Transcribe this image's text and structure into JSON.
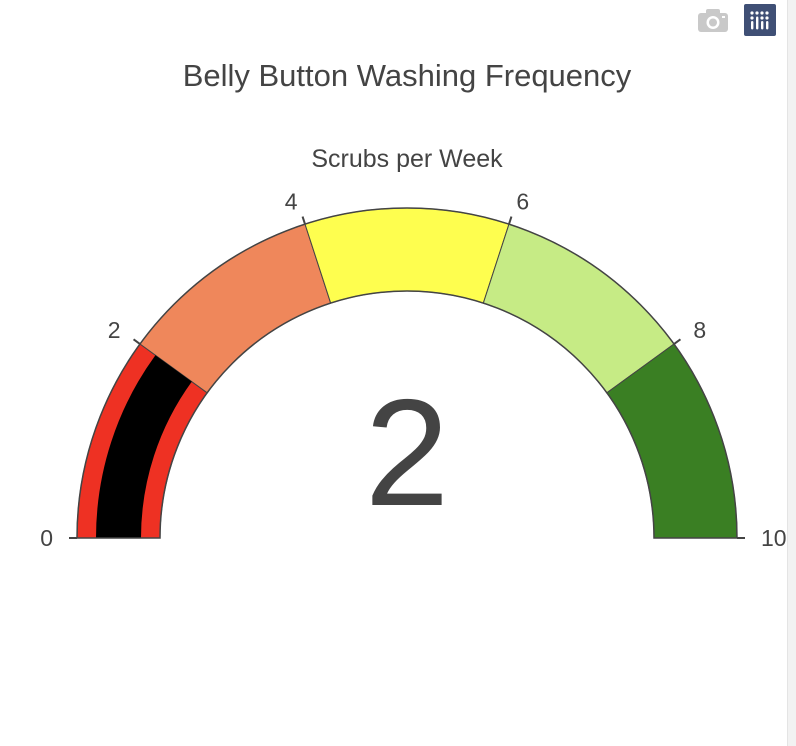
{
  "toolbar": {
    "camera_icon": "camera-icon",
    "plotly_icon": "plotly-logo-icon"
  },
  "chart_data": {
    "type": "gauge",
    "title": "Belly Button Washing Frequency",
    "subtitle": "Scrubs per Week",
    "value": 2,
    "value_label": "2",
    "range": [
      0,
      10
    ],
    "ticks": [
      0,
      2,
      4,
      6,
      8,
      10
    ],
    "tick_labels": [
      "0",
      "2",
      "4",
      "6",
      "8",
      "10"
    ],
    "bar_color": "#000000",
    "steps": [
      {
        "range": [
          0,
          2
        ],
        "color": "#ee3123"
      },
      {
        "range": [
          2,
          4
        ],
        "color": "#ef875b"
      },
      {
        "range": [
          4,
          6
        ],
        "color": "#fefe4f"
      },
      {
        "range": [
          6,
          8
        ],
        "color": "#c6eb85"
      },
      {
        "range": [
          8,
          10
        ],
        "color": "#3a7f23"
      }
    ]
  }
}
